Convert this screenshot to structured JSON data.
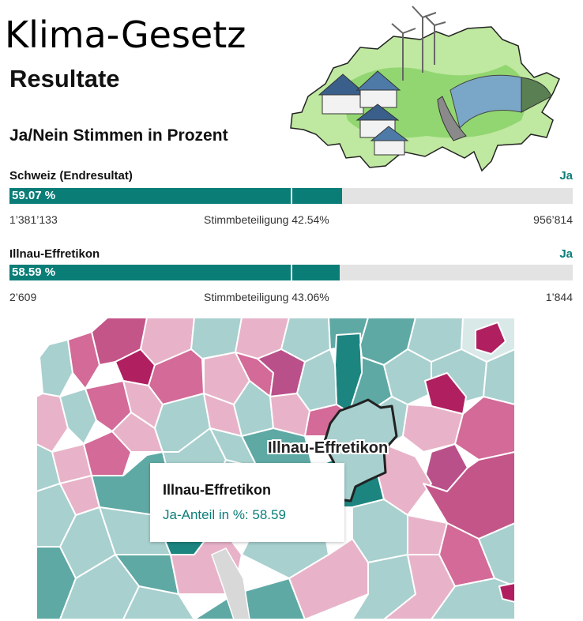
{
  "page": {
    "title": "Klima-Gesetz",
    "subtitle": "Resultate",
    "section_heading": "Ja/Nein Stimmen in Prozent"
  },
  "results": [
    {
      "label": "Schweiz (Endresultat)",
      "outcome": "Ja",
      "percent_text": "59.07 %",
      "yes_share": 59.07,
      "yes_votes": "1’381’133",
      "turnout": "Stimmbeteiligung 42.54%",
      "no_votes": "956’814"
    },
    {
      "label": "Illnau-Effretikon",
      "outcome": "Ja",
      "percent_text": "58.59 %",
      "yes_share": 58.59,
      "yes_votes": "2’609",
      "turnout": "Stimmbeteiligung 43.06%",
      "no_votes": "1’844"
    }
  ],
  "map": {
    "highlight_label": "Illnau-Effretikon",
    "tooltip": {
      "title": "Illnau-Effretikon",
      "value": "Ja-Anteil in %: 58.59"
    }
  },
  "colors": {
    "yes": "#0a7d77",
    "track": "#e3e3e3",
    "no_strong": "#b01f5f",
    "no_mid": "#d36a98",
    "no_light": "#e8b3c8",
    "yes_light": "#a8d0cf",
    "yes_mid": "#5fa9a5",
    "yes_strong": "#1d8580"
  },
  "icons": {
    "illustration": "switzerland-renewable-energy-illustration"
  }
}
